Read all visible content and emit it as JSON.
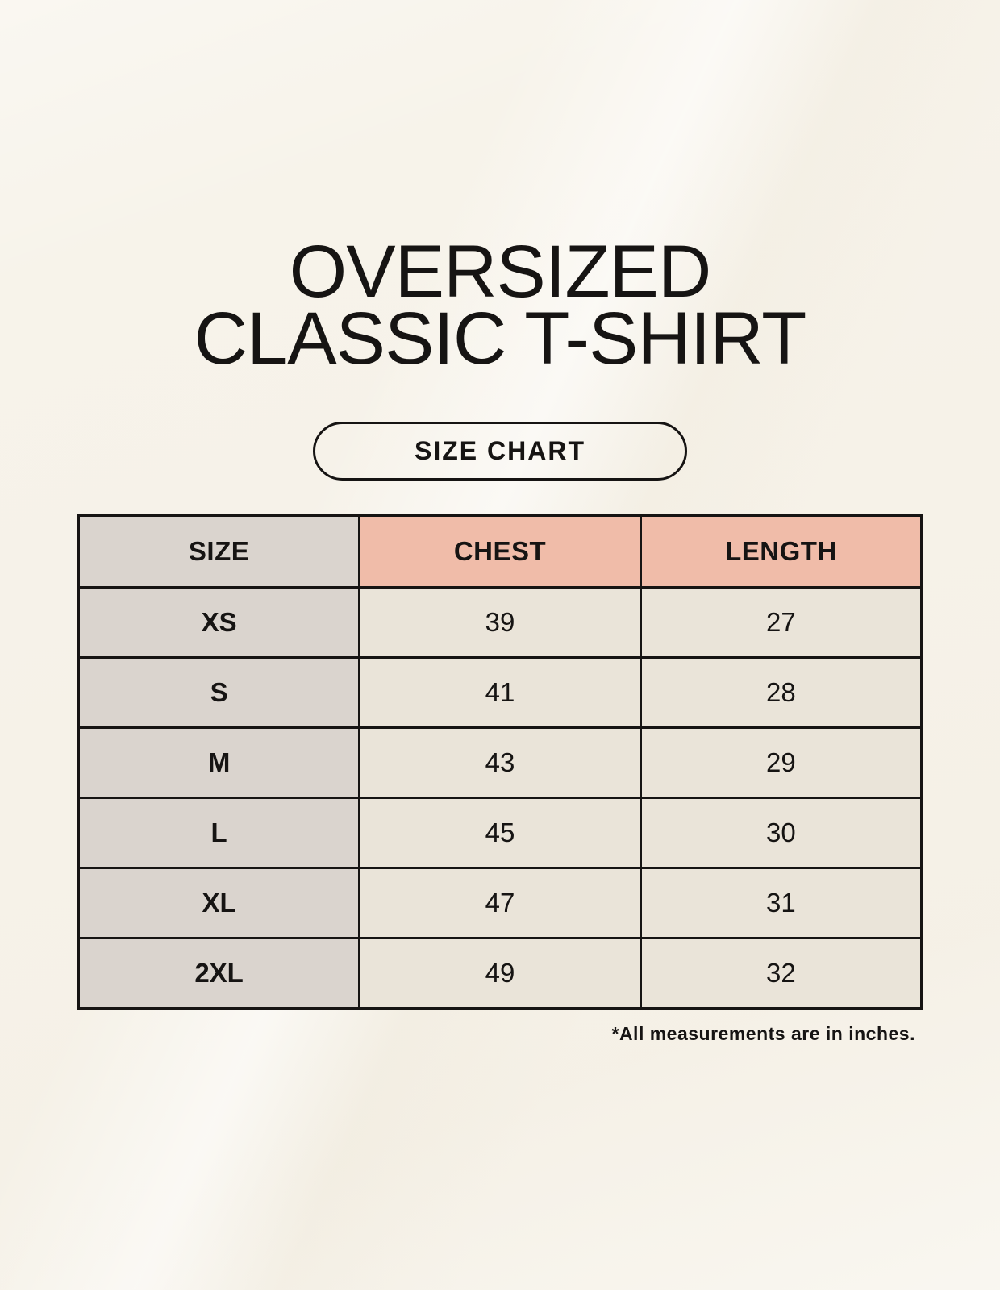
{
  "title": {
    "line1": "OVERSIZED",
    "line2": "CLASSIC T-SHIRT"
  },
  "button": {
    "label": "SIZE CHART"
  },
  "table": {
    "headers": [
      "SIZE",
      "CHEST",
      "LENGTH"
    ],
    "rows": [
      {
        "size": "XS",
        "chest": "39",
        "length": "27"
      },
      {
        "size": "S",
        "chest": "41",
        "length": "28"
      },
      {
        "size": "M",
        "chest": "43",
        "length": "29"
      },
      {
        "size": "L",
        "chest": "45",
        "length": "30"
      },
      {
        "size": "XL",
        "chest": "47",
        "length": "31"
      },
      {
        "size": "2XL",
        "chest": "49",
        "length": "32"
      }
    ]
  },
  "footnote": "*All measurements are in inches.",
  "colors": {
    "background": "#F7F3EA",
    "ink": "#161413",
    "cell_gray": "#DAD4CE",
    "cell_salmon": "#F0BCA9",
    "cell_cream": "#EAE4D9"
  }
}
